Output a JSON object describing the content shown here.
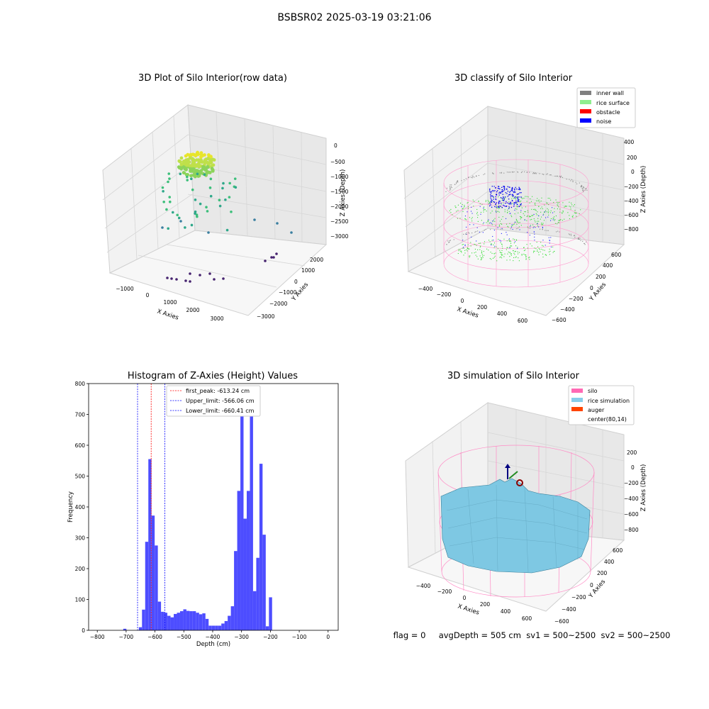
{
  "figure": {
    "title": "BSBSR02 2025-03-19 03:21:06"
  },
  "panels": {
    "raw": {
      "title": "3D Plot of Silo Interior(row data)",
      "xlabel": "X Axies",
      "ylabel": "Y Axies",
      "zlabel": "Z Axies (Depth)",
      "xticks": [
        "−1000",
        "0",
        "1000",
        "2000",
        "3000"
      ],
      "yticks": [
        "−3000",
        "−2000",
        "−1000",
        "0",
        "1000",
        "2000"
      ],
      "zticks": [
        "0",
        "−500",
        "−1000",
        "−1500",
        "−2000",
        "−2500",
        "−3000"
      ]
    },
    "classify": {
      "title": "3D classify of Silo Interior",
      "xlabel": "X Axies",
      "ylabel": "Y Axies",
      "zlabel": "Z Axies (Depth)",
      "xticks": [
        "−400",
        "−200",
        "0",
        "200",
        "400",
        "600"
      ],
      "yticks": [
        "−600",
        "−400",
        "−200",
        "0",
        "200",
        "400",
        "600"
      ],
      "zticks": [
        "400",
        "200",
        "0",
        "−200",
        "−400",
        "−600",
        "−800"
      ],
      "legend": [
        {
          "label": "inner wall",
          "color": "#808080"
        },
        {
          "label": "rice surface",
          "color": "#90ee90"
        },
        {
          "label": "obstacle",
          "color": "#ff0000"
        },
        {
          "label": "noise",
          "color": "#0000ff"
        }
      ]
    },
    "simulation": {
      "title": "3D simulation of Silo Interior",
      "xlabel": "X Axies",
      "ylabel": "Y Axies",
      "zlabel": "Z Axies (Depth)",
      "xticks": [
        "−400",
        "−200",
        "0",
        "200",
        "400",
        "600"
      ],
      "yticks": [
        "−600",
        "−400",
        "−200",
        "0",
        "200",
        "400",
        "600"
      ],
      "zticks": [
        "200",
        "0",
        "−200",
        "−400",
        "−600",
        "−800"
      ],
      "legend": [
        {
          "label": "silo",
          "color": "#ff69b4"
        },
        {
          "label": "rice simulation",
          "color": "#87ceeb"
        },
        {
          "label": "auger",
          "color": "#ff4500"
        },
        {
          "label": "center(80,14)",
          "color": "#ffffff"
        }
      ]
    }
  },
  "chart_data": {
    "type": "bar",
    "title": "Histogram of Z-Axies (Height) Values",
    "xlabel": "Depth (cm)",
    "ylabel": "Frequency",
    "xlim": [
      -830,
      35
    ],
    "ylim": [
      0,
      800
    ],
    "xticks": [
      -800,
      -700,
      -600,
      -500,
      -400,
      -300,
      -200,
      -100,
      0
    ],
    "yticks": [
      0,
      100,
      200,
      300,
      400,
      500,
      600,
      700,
      800
    ],
    "bin_width": 10.9,
    "bins": [
      [
        -710,
        5
      ],
      [
        -656,
        10
      ],
      [
        -645,
        67
      ],
      [
        -634,
        287
      ],
      [
        -623,
        555
      ],
      [
        -612,
        372
      ],
      [
        -601,
        275
      ],
      [
        -590,
        93
      ],
      [
        -579,
        60
      ],
      [
        -568,
        57
      ],
      [
        -557,
        47
      ],
      [
        -546,
        42
      ],
      [
        -535,
        53
      ],
      [
        -524,
        57
      ],
      [
        -513,
        62
      ],
      [
        -502,
        68
      ],
      [
        -491,
        63
      ],
      [
        -480,
        62
      ],
      [
        -469,
        62
      ],
      [
        -458,
        57
      ],
      [
        -447,
        52
      ],
      [
        -436,
        55
      ],
      [
        -425,
        37
      ],
      [
        -414,
        15
      ],
      [
        -403,
        15
      ],
      [
        -392,
        15
      ],
      [
        -381,
        15
      ],
      [
        -370,
        22
      ],
      [
        -359,
        30
      ],
      [
        -348,
        47
      ],
      [
        -337,
        78
      ],
      [
        -326,
        257
      ],
      [
        -315,
        452
      ],
      [
        -304,
        742
      ],
      [
        -293,
        362
      ],
      [
        -282,
        452
      ],
      [
        -271,
        767
      ],
      [
        -260,
        127
      ],
      [
        -249,
        235
      ],
      [
        -238,
        540
      ],
      [
        -227,
        310
      ],
      [
        -216,
        13
      ],
      [
        -205,
        107
      ]
    ],
    "vlines": [
      {
        "label": "first_peak: -613.24 cm",
        "x": -613.24,
        "color": "#ff0000"
      },
      {
        "label": "Upper_limit: -566.06 cm",
        "x": -566.06,
        "color": "#0000ff"
      },
      {
        "label": "Lower_limit: -660.41 cm",
        "x": -660.41,
        "color": "#0000ff"
      }
    ],
    "bar_color": "#4d4dff",
    "legend_position": "upper-left"
  },
  "footer": {
    "flag": "flag = 0",
    "avg": "avgDepth = 505 cm",
    "sv1": "sv1 = 500~2500",
    "sv2": "sv2 = 500~2500"
  }
}
